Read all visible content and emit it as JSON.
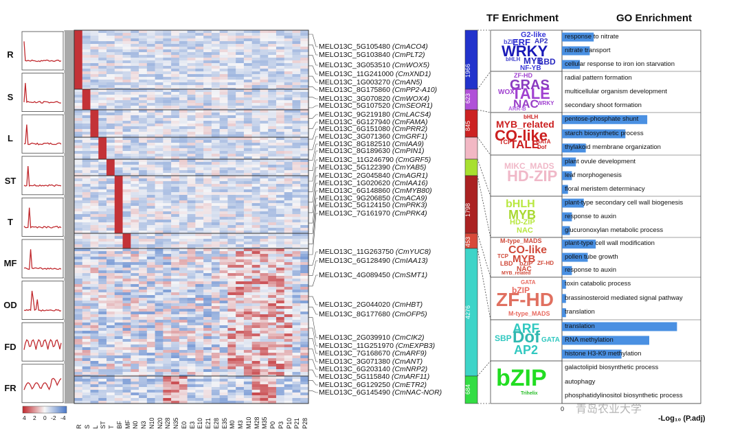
{
  "titles": {
    "tf": "TF Enrichment",
    "go": "GO Enrichment"
  },
  "axis": {
    "go_xlabel": "-Log₁₀ (P.adj)",
    "go_xmin": "0"
  },
  "watermark": "青岛农业大学",
  "colorbar": {
    "labels": [
      "4",
      "2",
      "0",
      "-2",
      "-4"
    ]
  },
  "colors": {
    "high": "#c0282d",
    "mid": "#f7f7f7",
    "low": "#4a78c8",
    "go_bar": "#4a90e2"
  },
  "chart_data": {
    "type": "heatmap",
    "tissues": [
      "R",
      "S",
      "L",
      "ST",
      "T",
      "MF",
      "OD",
      "FD",
      "FR"
    ],
    "columns": [
      "R",
      "S",
      "L",
      "ST",
      "T",
      "BF",
      "MF",
      "N0",
      "N3",
      "N10",
      "N20",
      "N28",
      "N35",
      "E0",
      "E3",
      "E10",
      "E21",
      "E28",
      "E35",
      "M0",
      "M3",
      "M10",
      "M28",
      "M35",
      "P0",
      "P3",
      "P10",
      "P21",
      "P28"
    ],
    "clusters": [
      {
        "tissue": "R",
        "count": "1966",
        "color": "#2233cc"
      },
      {
        "tissue": "S",
        "count": "623",
        "color": "#b050d8"
      },
      {
        "tissue": "L",
        "count": "845",
        "color": "#cc2222"
      },
      {
        "tissue": "ST",
        "count": "",
        "color": "#f2b8c4"
      },
      {
        "tissue": "T",
        "count": "",
        "color": "#a8e030"
      },
      {
        "tissue": "",
        "count": "1798",
        "color": "#aa2222"
      },
      {
        "tissue": "",
        "count": "453",
        "color": "#d84a3a"
      },
      {
        "tissue": "MF/OD/FD",
        "count": "4276",
        "color": "#3ed4c8"
      },
      {
        "tissue": "FR",
        "count": "684",
        "color": "#33dd44"
      }
    ],
    "genes": [
      {
        "id": "MELO13C_5G105480",
        "name": "(CmACO4)"
      },
      {
        "id": "MELO13C_5G103840",
        "name": "(CmPLT2)"
      },
      {
        "id": "MELO13C_3G053510",
        "name": "(CmWOX5)"
      },
      {
        "id": "MELO13C_11G241000",
        "name": "(CmXND1)"
      },
      {
        "id": "MELO13C_1G003270",
        "name": "(CmAN5)"
      },
      {
        "id": "MELO13C_8G175860",
        "name": "(CmPP2-A10)"
      },
      {
        "id": "MELO13C_3G070820",
        "name": "(CmWOX4)"
      },
      {
        "id": "MELO13C_5G107520",
        "name": "(CmSEOR1)"
      },
      {
        "id": "MELO13C_9G219180",
        "name": "(CmLACS4)"
      },
      {
        "id": "MELO13C_6G127940",
        "name": "(CmFAMA)"
      },
      {
        "id": "MELO13C_6G151080",
        "name": "(CmPRR2)"
      },
      {
        "id": "MELO13C_3G071360",
        "name": "(CmGRF1)"
      },
      {
        "id": "MELO13C_8G182510",
        "name": "(CmIAA9)"
      },
      {
        "id": "MELO13C_8G189630",
        "name": "(CmPIN1)"
      },
      {
        "id": "MELO13C_11G246790",
        "name": "(CmGRF5)"
      },
      {
        "id": "MELO13C_5G122390",
        "name": "(CmYAB5)"
      },
      {
        "id": "MELO13C_2G045840",
        "name": "(CmAGR1)"
      },
      {
        "id": "MELO13C_1G020620",
        "name": "(CmIAA16)"
      },
      {
        "id": "MELO13C_6G148860",
        "name": "(CmMYB80)"
      },
      {
        "id": "MELO13C_9G206850",
        "name": "(CmACA9)"
      },
      {
        "id": "MELO13C_5G124150",
        "name": "(CmPRK3)"
      },
      {
        "id": "MELO13C_7G161970",
        "name": "(CmPRK4)"
      },
      {
        "id": "MELO13C_11G263750",
        "name": "(CmYUC8)"
      },
      {
        "id": "MELO13C_6G128490",
        "name": "(CmIAA13)"
      },
      {
        "id": "MELO13C_4G089450",
        "name": "(CmSMT1)"
      },
      {
        "id": "MELO13C_2G044020",
        "name": "(CmHBT)"
      },
      {
        "id": "MELO13C_8G177680",
        "name": "(CmOFP5)"
      },
      {
        "id": "MELO13C_2G039910",
        "name": "(CmCIK2)"
      },
      {
        "id": "MELO13C_11G251970",
        "name": "(CmEXPB3)"
      },
      {
        "id": "MELO13C_7G168670",
        "name": "(CmARF9)"
      },
      {
        "id": "MELO13C_3G071380",
        "name": "(CmANT)"
      },
      {
        "id": "MELO13C_6G203140",
        "name": "(CmNRP2)"
      },
      {
        "id": "MELO13C_5G115840",
        "name": "(CmARF11)"
      },
      {
        "id": "MELO13C_6G129250",
        "name": "(CmETR2)"
      },
      {
        "id": "MELO13C_6G145490",
        "name": "(CmNAC-NOR)"
      }
    ],
    "tf_wordclouds": [
      {
        "words": [
          "G2-like",
          "bZIP",
          "ERF",
          "AP2",
          "WRKY",
          "bHLH",
          "MYB",
          "LBD",
          "NF-YB"
        ],
        "color": "#2a2ad0"
      },
      {
        "words": [
          "ZF-HD",
          "GRAS",
          "WOX",
          "TALE",
          "NAC",
          "WRKY",
          "ARR-B"
        ],
        "color": "#a040d0"
      },
      {
        "words": [
          "bHLH",
          "MYB_related",
          "CO-like",
          "TCP",
          "TALE",
          "GATA",
          "Dof"
        ],
        "color": "#cc2020"
      },
      {
        "words": [
          "MIKC_MADS",
          "HD-ZIP"
        ],
        "color": "#f0b8c8"
      },
      {
        "words": [
          "bHLH",
          "MYB",
          "HD-ZIP",
          "NAC"
        ],
        "color": "#b8e840"
      },
      {
        "words": [
          "M-type_MADS",
          "CO-like",
          "MYB",
          "TCP",
          "LBD",
          "bZIP",
          "ZF-HD",
          "NAC",
          "MYB_related"
        ],
        "color": "#d04a3a"
      },
      {
        "words": [
          "GATA",
          "bZIP",
          "ZF-HD",
          "M-type_MADS"
        ],
        "color": "#e86a60"
      },
      {
        "words": [
          "ARF",
          "SBP",
          "Dof",
          "GATA",
          "AP2"
        ],
        "color": "#30c8c0"
      },
      {
        "words": [
          "bZIP",
          "Trihelix"
        ],
        "color": "#22dd22"
      }
    ],
    "go_terms": [
      {
        "term": "response to nitrate",
        "value": 1.6
      },
      {
        "term": "nitrate transport",
        "value": 1.4
      },
      {
        "term": "cellular response to iron ion starvation",
        "value": 0.9
      },
      {
        "term": "radial pattern formation",
        "value": 0
      },
      {
        "term": "multicellular organism development",
        "value": 0
      },
      {
        "term": "secondary shoot formation",
        "value": 0
      },
      {
        "term": "pentose-phosphate shunt",
        "value": 4.3
      },
      {
        "term": "starch biosynthetic process",
        "value": 3.2
      },
      {
        "term": "thylakoid membrane organization",
        "value": 1.2
      },
      {
        "term": "plant ovule development",
        "value": 0.7
      },
      {
        "term": "leaf morphogenesis",
        "value": 0.5
      },
      {
        "term": "floral meristem determinacy",
        "value": 0.3
      },
      {
        "term": "plant-type secondary cell wall biogenesis",
        "value": 1.1
      },
      {
        "term": "response to auxin",
        "value": 0.5
      },
      {
        "term": "glucuronoxylan metabolic process",
        "value": 0.4
      },
      {
        "term": "plant-type cell wall modification",
        "value": 1.7
      },
      {
        "term": "pollen tube growth",
        "value": 1.3
      },
      {
        "term": "response to auxin",
        "value": 0.5
      },
      {
        "term": "toxin catabolic process",
        "value": 0.2
      },
      {
        "term": "brassinosteroid mediated signal pathway",
        "value": 0.2
      },
      {
        "term": "translation",
        "value": 0.2
      },
      {
        "term": "translation",
        "value": 5.8
      },
      {
        "term": "RNA methylation",
        "value": 4.4
      },
      {
        "term": "histone H3-K9 methylation",
        "value": 3.0
      },
      {
        "term": "galactolipid biosynthetic process",
        "value": 0
      },
      {
        "term": "autophagy",
        "value": 0
      },
      {
        "term": "phosphatidylinositol biosynthetic process",
        "value": 0
      }
    ],
    "go_xlim": [
      0,
      7
    ]
  }
}
